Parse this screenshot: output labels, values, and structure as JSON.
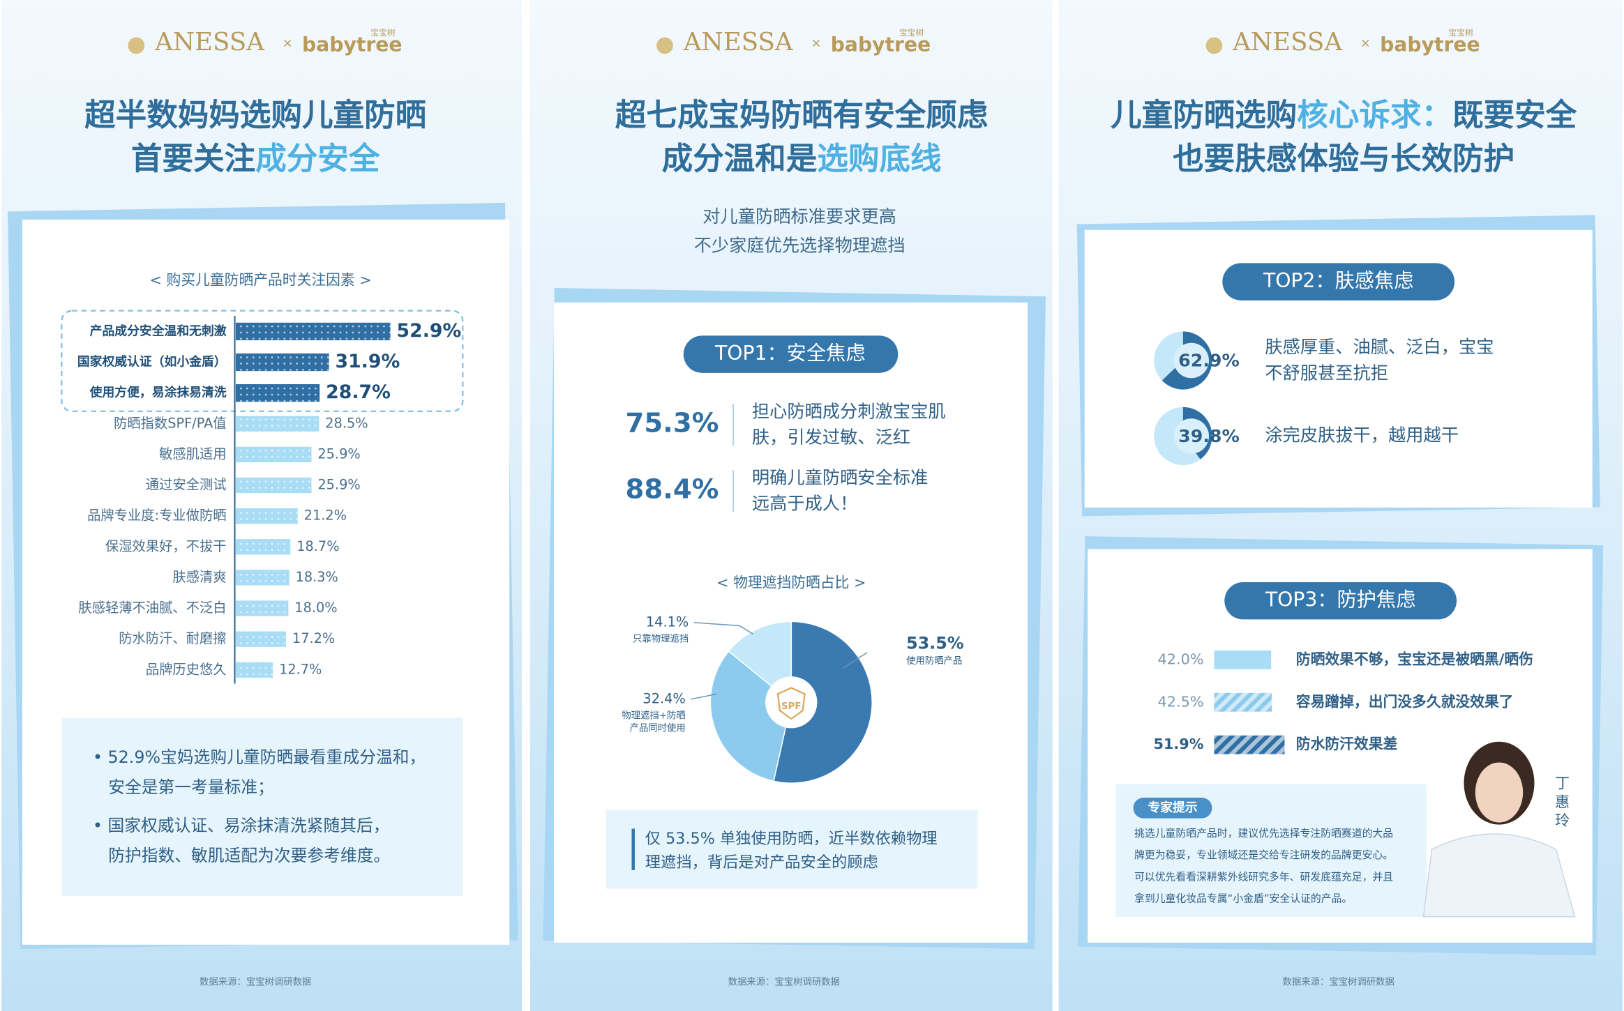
{
  "brand": {
    "anessa": "ANESSA",
    "times": "×",
    "babytree": "babytree",
    "babytree_cn": "宝宝树"
  },
  "source": "数据来源：宝宝树调研数据",
  "panels": [
    {
      "title": [
        [
          {
            "text": "超半数妈妈选购儿童防晒",
            "highlight": false
          }
        ],
        [
          {
            "text": "首要关注",
            "highlight": false
          },
          {
            "text": "成分安全",
            "highlight": true
          }
        ]
      ],
      "chart_data": {
        "type": "bar",
        "title": "< 购买儿童防晒产品时关注因素 >",
        "categories": [
          "产品成分安全温和无刺激",
          "国家权威认证（如小金盾）",
          "使用方便，易涂抹易清洗",
          "防晒指数SPF/PA值",
          "敏感肌适用",
          "通过安全测试",
          "品牌专业度:专业做防晒",
          "保湿效果好，不拔干",
          "肤感清爽",
          "肤感轻薄不油腻、不泛白",
          "防水防汗、耐磨擦",
          "品牌历史悠久"
        ],
        "values": [
          52.9,
          31.9,
          28.7,
          28.5,
          25.9,
          25.9,
          21.2,
          18.7,
          18.3,
          18.0,
          17.2,
          12.7
        ],
        "value_labels": [
          "52.9%",
          "31.9%",
          "28.7%",
          "28.5%",
          "25.9%",
          "25.9%",
          "21.2%",
          "18.7%",
          "18.3%",
          "18.0%",
          "17.2%",
          "12.7%"
        ],
        "colors": [
          "#2f6fa3",
          "#2f6fa3",
          "#2f6fa3",
          "#a9dcf5",
          "#a9dcf5",
          "#a9dcf5",
          "#a9dcf5",
          "#a9dcf5",
          "#a9dcf5",
          "#a9dcf5",
          "#a9dcf5",
          "#a9dcf5"
        ]
      },
      "notes": [
        [
          "• 52.9%宝妈选购儿童防晒最看重成分温和，",
          "安全是第一考量标准；"
        ],
        [
          "• 国家权威认证、易涂抹清洗紧随其后，",
          "防护指数、敏肌适配为次要参考维度。"
        ]
      ]
    },
    {
      "title": [
        [
          {
            "text": "超七成宝妈防晒有安全顾虑",
            "highlight": false
          }
        ],
        [
          {
            "text": "成分温和是",
            "highlight": false
          },
          {
            "text": "选购底线",
            "highlight": true
          }
        ]
      ],
      "subtitle": [
        "对儿童防晒标准要求更高",
        "不少家庭优先选择物理遮挡"
      ],
      "tag": "TOP1：安全焦虑",
      "stats": [
        {
          "value": 75.3,
          "label": "75.3%",
          "text": [
            "担心防晒成分刺激宝宝肌",
            "肤，引发过敏、泛红"
          ]
        },
        {
          "value": 88.4,
          "label": "88.4%",
          "text": [
            "明确儿童防晒安全标准",
            "远高于成人！"
          ]
        }
      ],
      "chart_data": {
        "type": "pie",
        "title": "< 物理遮挡防晒占比 >",
        "icon": "SPF",
        "categories": [
          [
            "使用防晒产品"
          ],
          [
            "物理遮挡+防晒",
            "产品同时使用"
          ],
          [
            "只靠物理遮挡"
          ]
        ],
        "values": [
          53.5,
          32.4,
          14.1
        ],
        "value_labels": [
          "53.5%",
          "32.4%",
          "14.1%"
        ],
        "colors": [
          "#3a7ab0",
          "#8ccbee",
          "#c2e8f9"
        ]
      },
      "note": [
        "仅 53.5% 单独使用防晒，近半数依赖物理",
        "理遮挡，背后是对产品安全的顾虑"
      ]
    },
    {
      "title": [
        [
          {
            "text": "儿童防晒选购",
            "highlight": false
          },
          {
            "text": "核心诉求：",
            "highlight": true
          },
          {
            "text": "既要安全",
            "highlight": false
          }
        ],
        [
          {
            "text": "也要肤感体验与长效防护",
            "highlight": false
          }
        ]
      ],
      "top2": {
        "tag": "TOP2：肤感焦虑",
        "chart_data": {
          "type": "donut",
          "values": [
            62.9,
            39.8
          ],
          "value_labels": [
            "62.9%",
            "39.8%"
          ],
          "texts": [
            [
              "肤感厚重、油腻、泛白，宝宝",
              "不舒服甚至抗拒"
            ],
            [
              "涂完皮肤拔干，越用越干"
            ]
          ],
          "colors": [
            "#2f6fa3",
            "#c2e8f9"
          ]
        }
      },
      "top3": {
        "tag": "TOP3：防护焦虑",
        "chart_data": {
          "type": "bar",
          "values": [
            42.0,
            42.5,
            51.9
          ],
          "value_labels": [
            "42.0%",
            "42.5%",
            "51.9%"
          ],
          "categories": [
            "防晒效果不够，宝宝还是被晒黑/晒伤",
            "容易蹭掉，出门没多久就没效果了",
            "防水防汗效果差"
          ],
          "colors": [
            "#a9dcf5",
            "#8ccbee",
            "#2f6fa3"
          ]
        }
      },
      "expert": {
        "label": "专家提示",
        "name": [
          "丁",
          "惠",
          "玲"
        ],
        "text": [
          "挑选儿童防晒产品时，建议优先选择专注防晒赛道的大品",
          "牌更为稳妥，专业领域还是交给专注研发的品牌更安心。",
          "可以优先看看深耕紫外线研究多年、研发底蕴充足，并且",
          "拿到儿童化妆品专属“小金盾”安全认证的产品。"
        ]
      }
    }
  ]
}
